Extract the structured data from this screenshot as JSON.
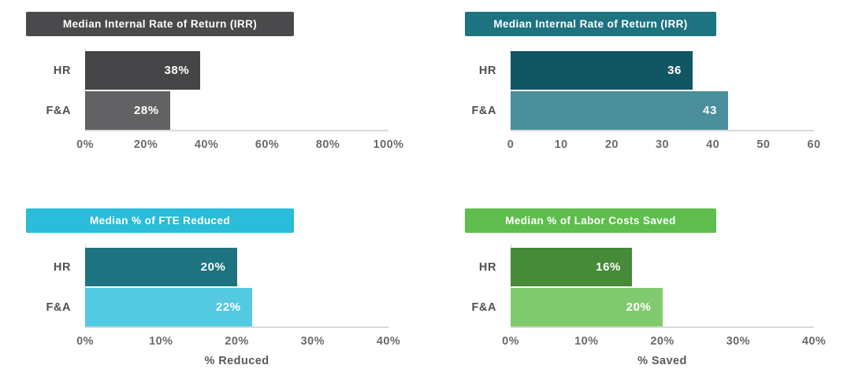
{
  "page": {
    "background": "#ffffff"
  },
  "chart_data": [
    {
      "type": "bar",
      "orientation": "horizontal",
      "title": "Median Internal Rate of Return (IRR)",
      "title_bg": "#4a4a4c",
      "categories": [
        "HR",
        "F&A"
      ],
      "values": [
        38,
        28
      ],
      "value_labels": [
        "38%",
        "28%"
      ],
      "bar_colors": [
        "#454548",
        "#626265"
      ],
      "xlim": [
        0,
        100
      ],
      "ticks": [
        "0%",
        "20%",
        "40%",
        "60%",
        "80%",
        "100%"
      ],
      "xlabel": "",
      "grid": false,
      "legend": "none"
    },
    {
      "type": "bar",
      "orientation": "horizontal",
      "title": "Median Internal Rate of Return (IRR)",
      "title_bg": "#1d7380",
      "categories": [
        "HR",
        "F&A"
      ],
      "values": [
        36,
        43
      ],
      "value_labels": [
        "36",
        "43"
      ],
      "bar_colors": [
        "#135663",
        "#4a8f9b"
      ],
      "xlim": [
        0,
        60
      ],
      "ticks": [
        "0",
        "10",
        "20",
        "30",
        "40",
        "50",
        "60"
      ],
      "xlabel": "",
      "grid": false,
      "legend": "none"
    },
    {
      "type": "bar",
      "orientation": "horizontal",
      "title": "Median % of FTE Reduced",
      "title_bg": "#2abcd9",
      "categories": [
        "HR",
        "F&A"
      ],
      "values": [
        20,
        22
      ],
      "value_labels": [
        "20%",
        "22%"
      ],
      "bar_colors": [
        "#1d7380",
        "#54c9e2"
      ],
      "xlim": [
        0,
        40
      ],
      "ticks": [
        "0%",
        "10%",
        "20%",
        "30%",
        "40%"
      ],
      "xlabel": "% Reduced",
      "grid": false,
      "legend": "none"
    },
    {
      "type": "bar",
      "orientation": "horizontal",
      "title": "Median % of Labor Costs Saved",
      "title_bg": "#5fbd4d",
      "categories": [
        "HR",
        "F&A"
      ],
      "values": [
        16,
        20
      ],
      "value_labels": [
        "16%",
        "20%"
      ],
      "bar_colors": [
        "#478a37",
        "#80cb6e"
      ],
      "xlim": [
        0,
        40
      ],
      "ticks": [
        "0%",
        "10%",
        "20%",
        "30%",
        "40%"
      ],
      "xlabel": "% Saved",
      "grid": false,
      "legend": "none"
    }
  ]
}
